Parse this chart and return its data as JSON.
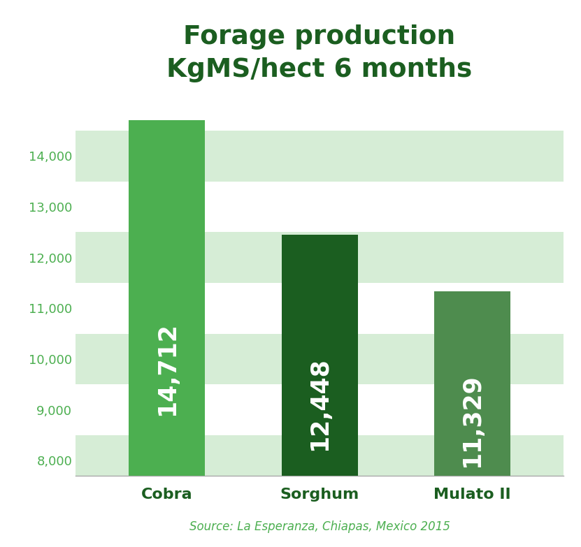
{
  "title_line1": "Forage production",
  "title_line2": "KgMS/hect 6 months",
  "categories": [
    "Cobra",
    "Sorghum",
    "Mulato II"
  ],
  "values": [
    14712,
    12448,
    11329
  ],
  "labels": [
    "14,712",
    "12,448",
    "11,329"
  ],
  "bar_colors": [
    "#4CAF50",
    "#1B5E20",
    "#4E8C4E"
  ],
  "bg_color": "#FFFFFF",
  "stripe_color": "#D6EDD6",
  "ylabel_ticks": [
    8000,
    9000,
    10000,
    11000,
    12000,
    13000,
    14000
  ],
  "ymin": 7700,
  "ymax": 14700,
  "source_text": "Source: La Esperanza, Chiapas, Mexico 2015",
  "title_color": "#1B5E20",
  "source_color": "#4CAF50",
  "label_color": "#FFFFFF",
  "tick_color": "#4CAF50",
  "xlabel_color": "#1B5E20",
  "bar_bottom": 7700
}
